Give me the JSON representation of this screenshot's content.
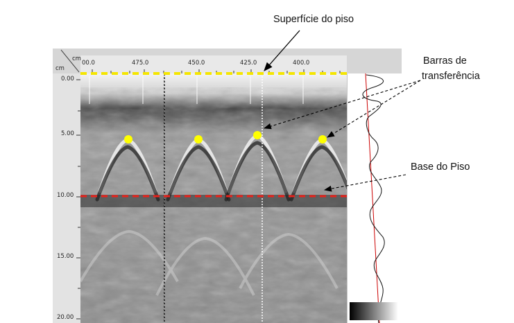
{
  "annotations": {
    "surface": "Superfície do piso",
    "bars_line1": "Barras de",
    "bars_line2": "transferência",
    "base": "Base do Piso"
  },
  "top_axis": {
    "unit": "cm",
    "ticks": [
      "00.0",
      "475.0",
      "450.0",
      "425.0",
      "400.0"
    ]
  },
  "left_axis": {
    "unit": "cm",
    "ticks": [
      "0.00",
      "5.00",
      "10.00",
      "15.00",
      "20.00"
    ]
  },
  "colors": {
    "surface_line": "#f5e600",
    "base_line": "#e8231c",
    "bar_marker": "#ffff00",
    "trace_red": "#cc0000",
    "trace_black": "#111111"
  }
}
